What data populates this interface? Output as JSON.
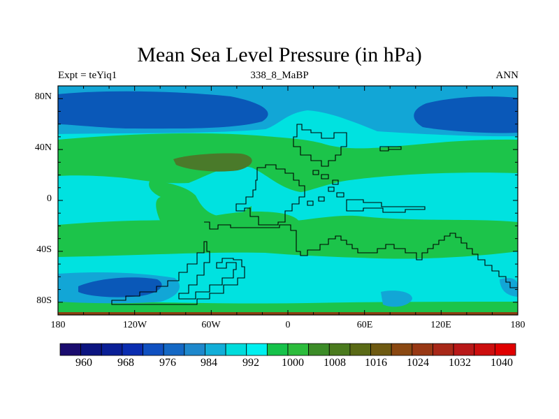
{
  "title": "Mean Sea Level Pressure (in hPa)",
  "subtitle_left": "Expt = teYiq1",
  "subtitle_center": "338_8_MaBP",
  "subtitle_right": "ANN",
  "y_axis_labels": [
    "80N",
    "40N",
    "0",
    "40S",
    "80S"
  ],
  "x_axis_labels": [
    "180",
    "120W",
    "60W",
    "0",
    "60E",
    "120E",
    "180"
  ],
  "colorbar": {
    "labels": [
      "960",
      "968",
      "976",
      "984",
      "992",
      "1000",
      "1008",
      "1016",
      "1024",
      "1032",
      "1040"
    ],
    "colors": [
      "#1a0c6e",
      "#0c1480",
      "#0a1f96",
      "#0a2db0",
      "#1050c0",
      "#1468c4",
      "#1e88cc",
      "#12aed8",
      "#00dcdc",
      "#00f0f0",
      "#16c24a",
      "#2cbc3c",
      "#3c8c28",
      "#4a7a1e",
      "#5a6a16",
      "#6e5a12",
      "#8a4812",
      "#983814",
      "#a82818",
      "#b81818",
      "#cc0e0e",
      "#e00000"
    ]
  },
  "map_colors": {
    "p_988": "#0a58b8",
    "p_996": "#12a6d6",
    "p_1004": "#00e2e0",
    "p_1012": "#1cc44a",
    "p_1020": "#4a7a2a",
    "high_band": "#8a4012"
  }
}
